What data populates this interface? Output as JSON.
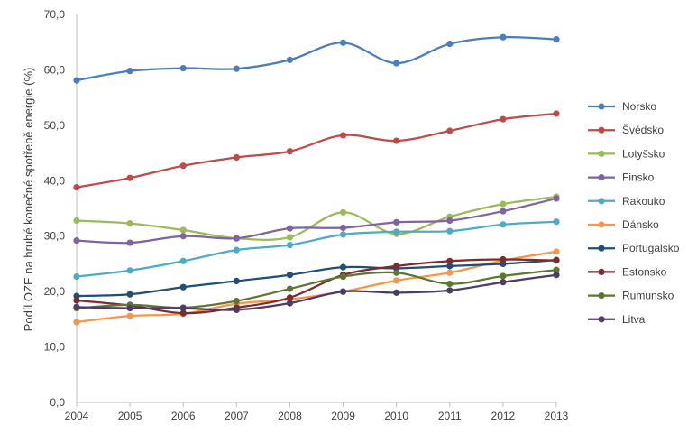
{
  "chart_data": {
    "type": "line",
    "title": "",
    "xlabel": "",
    "ylabel": "Podíl OZE na hrubé konečné spotřebě energie (%)",
    "ylim": [
      0,
      70
    ],
    "y_ticks": [
      "0,0",
      "10,0",
      "20,0",
      "30,0",
      "40,0",
      "50,0",
      "60,0",
      "70,0"
    ],
    "grid": false,
    "legend_position": "right",
    "smooth": true,
    "x": [
      "2004",
      "2005",
      "2006",
      "2007",
      "2008",
      "2009",
      "2010",
      "2011",
      "2012",
      "2013"
    ],
    "series": [
      {
        "name": "Norsko",
        "color": "#4a7ebb",
        "values": [
          58.1,
          59.8,
          60.3,
          60.2,
          61.8,
          64.9,
          61.2,
          64.7,
          65.9,
          65.5
        ]
      },
      {
        "name": "Švédsko",
        "color": "#be4b48",
        "values": [
          38.8,
          40.5,
          42.7,
          44.2,
          45.3,
          48.2,
          47.2,
          49.0,
          51.1,
          52.1
        ]
      },
      {
        "name": "Lotyšsko",
        "color": "#9bbb59",
        "values": [
          32.8,
          32.3,
          31.1,
          29.6,
          29.8,
          34.3,
          30.4,
          33.5,
          35.8,
          37.1
        ]
      },
      {
        "name": "Finsko",
        "color": "#8064a2",
        "values": [
          29.2,
          28.8,
          30.0,
          29.6,
          31.4,
          31.5,
          32.5,
          32.8,
          34.5,
          36.8
        ]
      },
      {
        "name": "Rakouko",
        "color": "#4bacc6",
        "values": [
          22.7,
          23.8,
          25.5,
          27.5,
          28.4,
          30.3,
          30.8,
          30.9,
          32.1,
          32.6
        ]
      },
      {
        "name": "Dánsko",
        "color": "#f79646",
        "values": [
          14.5,
          15.6,
          16.0,
          17.8,
          18.6,
          20.0,
          22.0,
          23.4,
          25.6,
          27.2
        ]
      },
      {
        "name": "Portugalsko",
        "color": "#1f4e79",
        "values": [
          19.2,
          19.5,
          20.8,
          21.9,
          23.0,
          24.4,
          24.2,
          24.6,
          25.0,
          25.7
        ]
      },
      {
        "name": "Estonsko",
        "color": "#7b2c2c",
        "values": [
          18.4,
          17.5,
          16.1,
          17.1,
          18.9,
          23.0,
          24.6,
          25.5,
          25.8,
          25.6
        ]
      },
      {
        "name": "Rumunsko",
        "color": "#5f7530",
        "values": [
          17.0,
          17.6,
          17.1,
          18.3,
          20.5,
          22.7,
          23.4,
          21.4,
          22.8,
          23.9
        ]
      },
      {
        "name": "Litva",
        "color": "#4e3b67",
        "values": [
          17.2,
          17.0,
          17.0,
          16.7,
          17.9,
          20.0,
          19.8,
          20.2,
          21.7,
          23.0
        ]
      }
    ]
  }
}
